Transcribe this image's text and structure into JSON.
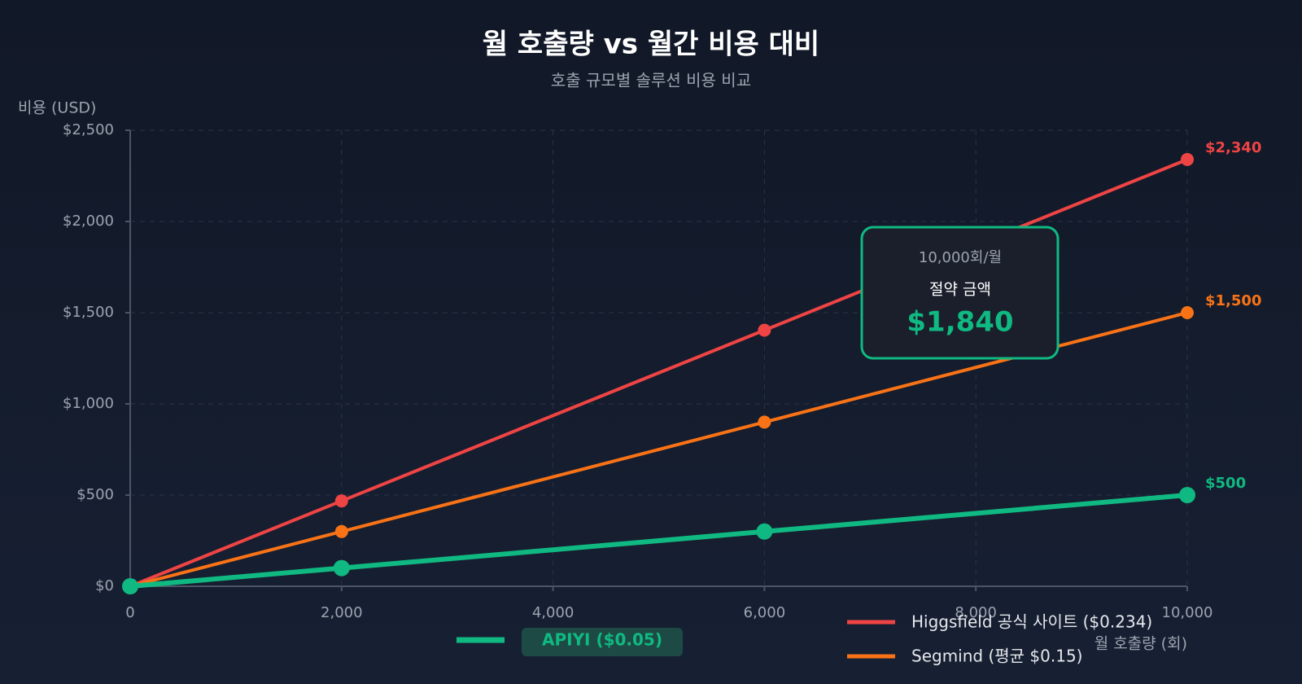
{
  "chart_data": {
    "type": "line",
    "title": "월 호출량 vs 월간 비용 대비",
    "subtitle": "호출 규모별 솔루션 비용 비교",
    "y_label": "비용 (USD)",
    "x_label": "월 호출량 (회)",
    "x": [
      0,
      2000,
      6000,
      10000
    ],
    "xlim": [
      0,
      10000
    ],
    "xticks": [
      0,
      {
        "value": 2000,
        "label": "2,000"
      },
      {
        "value": 4000,
        "label": "4,000"
      },
      {
        "value": 6000,
        "label": "6,000"
      },
      {
        "value": 8000,
        "label": "8,000"
      },
      {
        "value": 10000,
        "label": "10,000"
      }
    ],
    "ylim": [
      0,
      2500
    ],
    "yticks": [
      {
        "value": 0,
        "label": "$0"
      },
      {
        "value": 500,
        "label": "$500"
      },
      {
        "value": 1000,
        "label": "$1,000"
      },
      {
        "value": 1500,
        "label": "$1,500"
      },
      {
        "value": 2000,
        "label": "$2,000"
      },
      {
        "value": 2500,
        "label": "$2,500"
      }
    ],
    "grid": true,
    "series": [
      {
        "name": "Higgsfield 공식 사이트 ($0.234)",
        "color": "#ef4444",
        "values": [
          0,
          468,
          1404,
          2340
        ],
        "value_labels": [
          null,
          null,
          null,
          "$2,340"
        ]
      },
      {
        "name": "Segmind (평균 $0.15)",
        "color": "#f97316",
        "values": [
          0,
          300,
          900,
          1500
        ],
        "value_labels": [
          null,
          null,
          null,
          "$1,500"
        ]
      },
      {
        "name": "APIYI ($0.05)",
        "color": "#10b981",
        "values": [
          0,
          100,
          300,
          500
        ],
        "value_labels": [
          null,
          null,
          null,
          "$500"
        ]
      }
    ],
    "annotation": {
      "period": "10,000회/월",
      "label": "절약 금액",
      "amount": "$1,840"
    }
  }
}
